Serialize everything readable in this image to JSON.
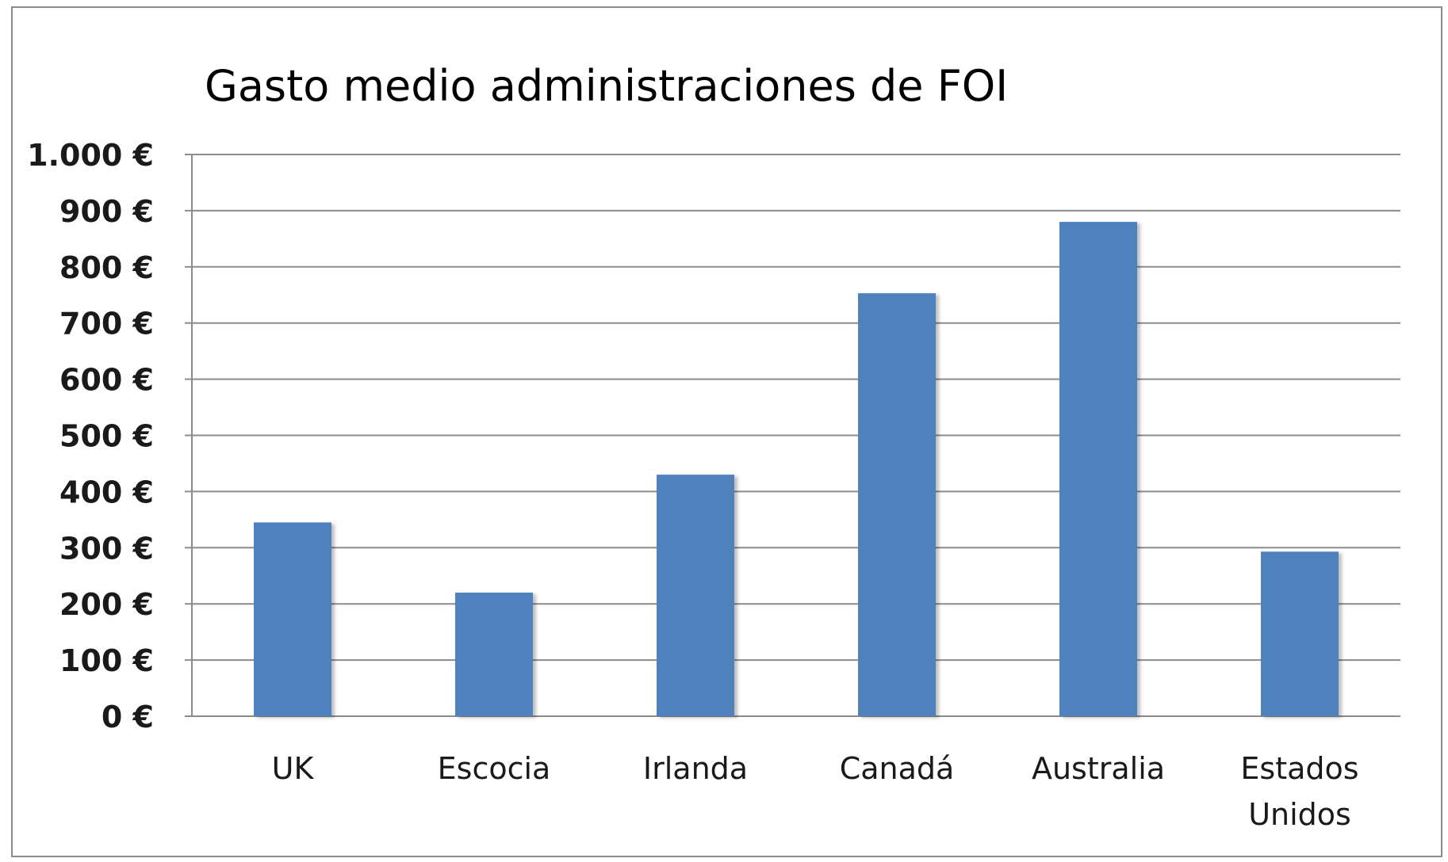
{
  "chart_data": {
    "type": "bar",
    "title": "Gasto medio administraciones de FOI",
    "xlabel": "",
    "ylabel": "",
    "categories": [
      "UK",
      "Escocia",
      "Irlanda",
      "Canadá",
      "Australia",
      "Estados Unidos"
    ],
    "category_lines": [
      [
        "UK"
      ],
      [
        "Escocia"
      ],
      [
        "Irlanda"
      ],
      [
        "Canadá"
      ],
      [
        "Australia"
      ],
      [
        "Estados",
        "Unidos"
      ]
    ],
    "values": [
      345,
      220,
      430,
      753,
      880,
      293
    ],
    "ylim": [
      0,
      1000
    ],
    "yticks": [
      0,
      100,
      200,
      300,
      400,
      500,
      600,
      700,
      800,
      900,
      1000
    ],
    "ytick_labels": [
      "0 €",
      "100 €",
      "200 €",
      "300 €",
      "400 €",
      "500 €",
      "600 €",
      "700 €",
      "800 €",
      "900 €",
      "1.000 €"
    ],
    "grid": true,
    "legend": "none",
    "bar_color": "#4f81bd",
    "grid_color": "#8c8c8c"
  }
}
